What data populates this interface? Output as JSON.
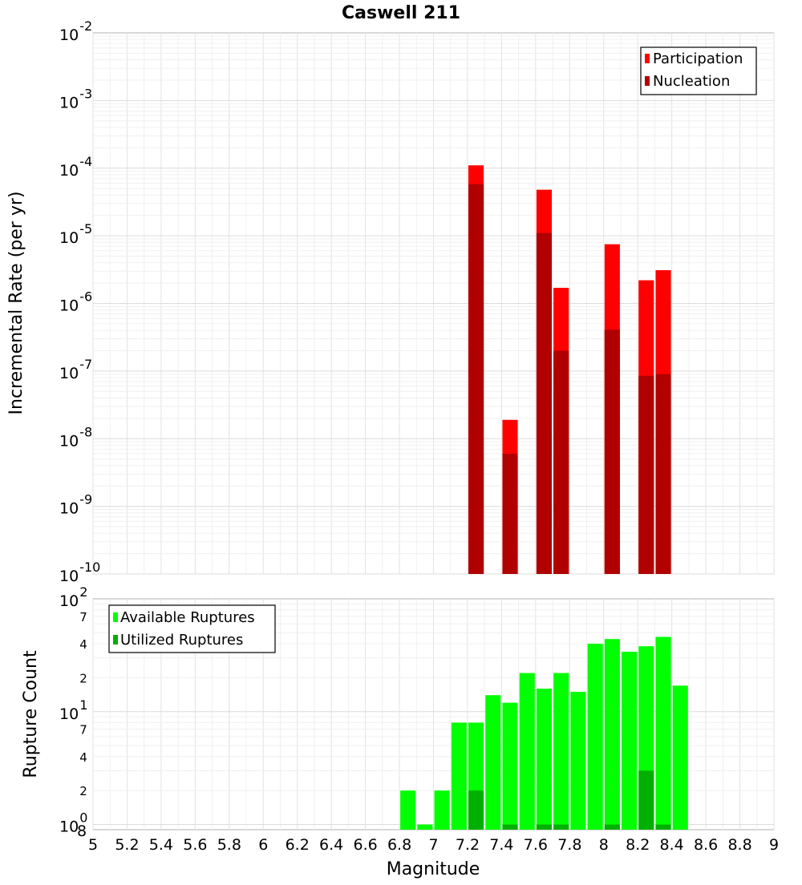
{
  "chart_data": {
    "type": "bar",
    "title": "Caswell 211",
    "x": [
      5.05,
      5.15,
      5.25,
      5.35,
      5.45,
      5.55,
      5.65,
      5.75,
      5.85,
      5.95,
      6.05,
      6.15,
      6.25,
      6.35,
      6.45,
      6.55,
      6.65,
      6.75,
      6.85,
      6.95,
      7.05,
      7.15,
      7.25,
      7.35,
      7.45,
      7.55,
      7.65,
      7.75,
      7.85,
      7.95,
      8.05,
      8.15,
      8.25,
      8.35,
      8.45,
      8.55,
      8.65,
      8.75,
      8.85,
      8.95
    ],
    "xlabel": "Magnitude",
    "xlim": [
      5,
      9
    ],
    "xticks": [
      "5",
      "5.2",
      "5.4",
      "5.6",
      "5.8",
      "6",
      "6.2",
      "6.4",
      "6.6",
      "6.8",
      "7",
      "7.2",
      "7.4",
      "7.6",
      "7.8",
      "8",
      "8.2",
      "8.4",
      "8.6",
      "8.8",
      "9"
    ],
    "panels": [
      {
        "name": "rate",
        "ylabel": "Incremental Rate (per yr)",
        "yscale": "log",
        "ylim": [
          1e-10,
          0.01
        ],
        "legend_position": "top-right",
        "series": [
          {
            "name": "Participation",
            "color": "#ff0000",
            "points": [
              [
                7.25,
                0.00011
              ],
              [
                7.45,
                1.9e-08
              ],
              [
                7.65,
                4.8e-05
              ],
              [
                7.75,
                1.7e-06
              ],
              [
                8.05,
                7.5e-06
              ],
              [
                8.25,
                2.2e-06
              ],
              [
                8.35,
                3.1e-06
              ]
            ]
          },
          {
            "name": "Nucleation",
            "color": "#b00000",
            "points": [
              [
                7.25,
                5.8e-05
              ],
              [
                7.45,
                6e-09
              ],
              [
                7.65,
                1.1e-05
              ],
              [
                7.75,
                2e-07
              ],
              [
                8.05,
                4.1e-07
              ],
              [
                8.25,
                8.5e-08
              ],
              [
                8.35,
                9e-08
              ]
            ]
          }
        ]
      },
      {
        "name": "count",
        "ylabel": "Rupture Count",
        "yscale": "log",
        "ylim": [
          0.9,
          100
        ],
        "legend_position": "top-left",
        "series": [
          {
            "name": "Available Ruptures",
            "color": "#00ff00",
            "points": [
              [
                6.85,
                2
              ],
              [
                6.95,
                1
              ],
              [
                7.05,
                2
              ],
              [
                7.15,
                8
              ],
              [
                7.25,
                8
              ],
              [
                7.35,
                14
              ],
              [
                7.45,
                12
              ],
              [
                7.55,
                22
              ],
              [
                7.65,
                16
              ],
              [
                7.75,
                22
              ],
              [
                7.85,
                15
              ],
              [
                7.95,
                40
              ],
              [
                8.05,
                44
              ],
              [
                8.15,
                34
              ],
              [
                8.25,
                38
              ],
              [
                8.35,
                46
              ],
              [
                8.45,
                17
              ]
            ]
          },
          {
            "name": "Utilized Ruptures",
            "color": "#00b000",
            "points": [
              [
                7.25,
                2
              ],
              [
                7.45,
                1
              ],
              [
                7.65,
                1
              ],
              [
                7.75,
                1
              ],
              [
                8.05,
                1
              ],
              [
                8.25,
                3
              ],
              [
                8.35,
                1
              ]
            ]
          }
        ]
      }
    ],
    "grid": true
  }
}
